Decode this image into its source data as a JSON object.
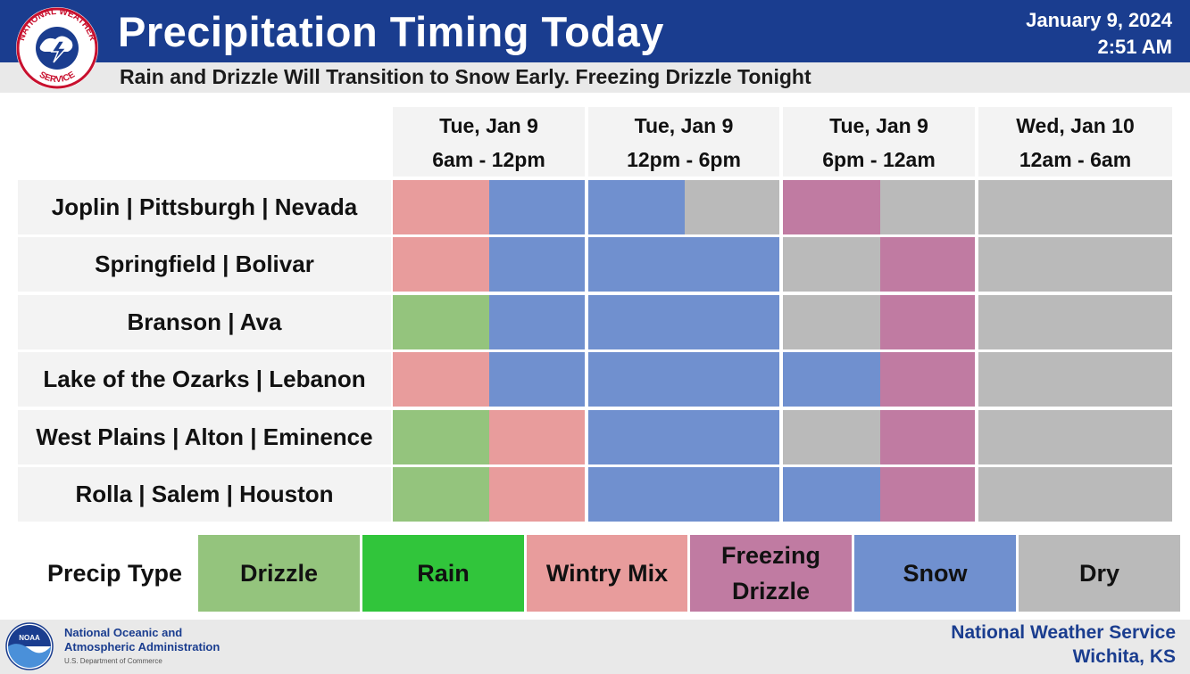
{
  "header": {
    "title": "Precipitation Timing Today",
    "subtitle": "Rain and Drizzle Will Transition to Snow Early. Freezing Drizzle Tonight",
    "date": "January 9, 2024",
    "time": "2:51 AM",
    "logo_text": "NATIONAL WEATHER SERVICE"
  },
  "colors": {
    "header_blue": "#1a3d8f",
    "drizzle": "#94c47d",
    "rain": "#31c53b",
    "wintry_mix": "#e89c9c",
    "freezing_drizzle": "#c07ba2",
    "snow": "#7090cf",
    "dry": "#bababa"
  },
  "periods": [
    {
      "day": "Tue, Jan 9",
      "range": "6am - 12pm"
    },
    {
      "day": "Tue, Jan 9",
      "range": "12pm - 6pm"
    },
    {
      "day": "Tue, Jan 9",
      "range": "6pm - 12am"
    },
    {
      "day": "Wed, Jan 10",
      "range": "12am - 6am"
    }
  ],
  "rows": [
    {
      "location": "Joplin | Pittsburgh | Nevada",
      "cells": [
        "wintry_mix",
        "snow",
        "snow",
        "dry",
        "freezing_drizzle",
        "dry",
        "dry",
        "dry"
      ]
    },
    {
      "location": "Springfield | Bolivar",
      "cells": [
        "wintry_mix",
        "snow",
        "snow",
        "snow",
        "dry",
        "freezing_drizzle",
        "dry",
        "dry"
      ]
    },
    {
      "location": "Branson | Ava",
      "cells": [
        "drizzle",
        "snow",
        "snow",
        "snow",
        "dry",
        "freezing_drizzle",
        "dry",
        "dry"
      ]
    },
    {
      "location": "Lake of the Ozarks | Lebanon",
      "cells": [
        "wintry_mix",
        "snow",
        "snow",
        "snow",
        "snow",
        "freezing_drizzle",
        "dry",
        "dry"
      ]
    },
    {
      "location": "West Plains | Alton | Eminence",
      "cells": [
        "drizzle",
        "wintry_mix",
        "snow",
        "snow",
        "dry",
        "freezing_drizzle",
        "dry",
        "dry"
      ]
    },
    {
      "location": "Rolla | Salem | Houston",
      "cells": [
        "drizzle",
        "wintry_mix",
        "snow",
        "snow",
        "snow",
        "freezing_drizzle",
        "dry",
        "dry"
      ]
    }
  ],
  "legend": {
    "title": "Precip Type",
    "items": [
      {
        "key": "drizzle",
        "label": "Drizzle"
      },
      {
        "key": "rain",
        "label": "Rain"
      },
      {
        "key": "wintry_mix",
        "label": "Wintry Mix"
      },
      {
        "key": "freezing_drizzle",
        "label": "Freezing Drizzle"
      },
      {
        "key": "snow",
        "label": "Snow"
      },
      {
        "key": "dry",
        "label": "Dry"
      }
    ]
  },
  "footer": {
    "agency_line1": "National Oceanic and",
    "agency_line2": "Atmospheric Administration",
    "agency_line3": "U.S. Department of Commerce",
    "noaa_logo_text": "NOAA",
    "office_line1": "National Weather Service",
    "office_line2": "Wichita, KS"
  }
}
